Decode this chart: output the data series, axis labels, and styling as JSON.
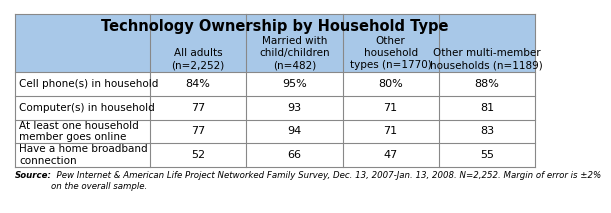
{
  "title": "Technology Ownership by Household Type",
  "col_headers": [
    "All adults\n(n=2,252)",
    "Married with\nchild/children\n(n=482)",
    "Other\nhousehold\ntypes (n=1770)",
    "Other multi-member\nhouseholds (n=1189)"
  ],
  "row_labels": [
    "Cell phone(s) in household",
    "Computer(s) in household",
    "At least one household\nmember goes online",
    "Have a home broadband\nconnection"
  ],
  "data": [
    [
      "84%",
      "95%",
      "80%",
      "88%"
    ],
    [
      "77",
      "93",
      "71",
      "81"
    ],
    [
      "77",
      "94",
      "71",
      "83"
    ],
    [
      "52",
      "66",
      "47",
      "55"
    ]
  ],
  "header_bg": "#a8c8e8",
  "border_color": "#888888",
  "title_fontsize": 10.5,
  "header_fontsize": 7.5,
  "data_fontsize": 8,
  "row_label_fontsize": 7.5,
  "source_text_bold": "Source:",
  "source_text_rest": "  Pew Internet & American Life Project Networked Family Survey, Dec. 13, 2007-Jan. 13, 2008. N=2,252. Margin of error is ±2%\non the overall sample."
}
